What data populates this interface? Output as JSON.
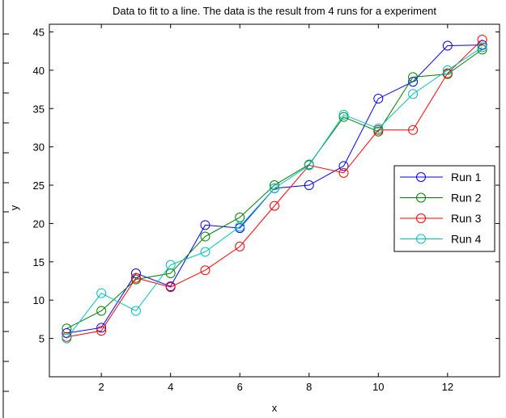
{
  "chart_data": {
    "type": "line",
    "title": "Data to fit to a line. The data is the result from 4 runs for a experiment",
    "xlabel": "x",
    "ylabel": "y",
    "xlim": [
      0.5,
      13.5
    ],
    "ylim": [
      0,
      46
    ],
    "xticks": [
      2,
      4,
      6,
      8,
      10,
      12
    ],
    "yticks": [
      5,
      10,
      15,
      20,
      25,
      30,
      35,
      40,
      45
    ],
    "grid": false,
    "legend_position": "right",
    "x": [
      1,
      2,
      3,
      4,
      5,
      6,
      7,
      8,
      9,
      10,
      11,
      12,
      13
    ],
    "series": [
      {
        "name": "Run 1",
        "color": "#0000ff",
        "marker": "circle",
        "values": [
          5.7,
          6.4,
          13.5,
          11.8,
          19.8,
          19.4,
          24.6,
          25.0,
          27.5,
          36.3,
          38.5,
          43.2,
          43.3
        ]
      },
      {
        "name": "Run 2",
        "color": "#008000",
        "marker": "circle",
        "values": [
          6.3,
          8.6,
          12.7,
          13.5,
          18.3,
          20.8,
          25.0,
          27.7,
          33.9,
          32.0,
          39.1,
          39.5,
          42.7
        ]
      },
      {
        "name": "Run 3",
        "color": "#ff0000",
        "marker": "circle",
        "values": [
          5.2,
          6.0,
          12.9,
          11.7,
          13.9,
          17.0,
          22.3,
          27.6,
          26.6,
          32.2,
          32.2,
          39.6,
          44.0
        ]
      },
      {
        "name": "Run 4",
        "color": "#00bfbf",
        "marker": "circle",
        "values": [
          5.0,
          10.9,
          8.6,
          14.6,
          16.3,
          19.6,
          24.6,
          27.6,
          34.2,
          32.4,
          36.9,
          40.0,
          43.0
        ]
      }
    ]
  }
}
